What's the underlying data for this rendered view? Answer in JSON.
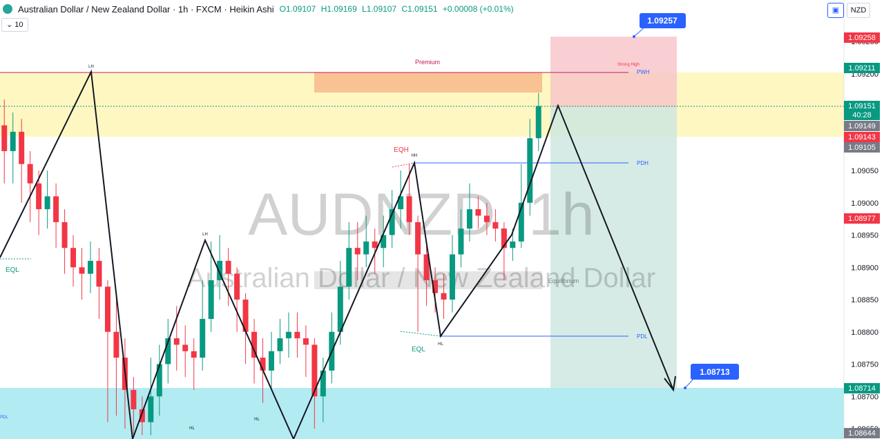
{
  "header": {
    "symbol_title": "Australian Dollar / New Zealand Dollar · 1h · FXCM · Heikin Ashi",
    "open": "O1.09107",
    "high": "H1.09169",
    "low": "L1.09107",
    "close": "C1.09151",
    "change": "+0.00008 (+0.01%)",
    "interval_value": "10",
    "currency_button": "NZD"
  },
  "watermark": {
    "symbol": "AUDNZD, 1h",
    "name": "Australian Dollar / New Zealand Dollar"
  },
  "colors": {
    "up": "#089981",
    "down": "#f23645",
    "premium_zone": "#fff7c2",
    "discount_zone": "#b2ebf2",
    "stop_zone": "#f8c3c8",
    "target_zone": "#cfe8e0",
    "orange_block": "#f7b98a",
    "callout": "#2962ff"
  },
  "chart_data": {
    "type": "candlestick",
    "title": "",
    "y_axis": {
      "ylim": [
        1.0864,
        1.0926
      ],
      "ticks": [
        "1.09250",
        "1.09200",
        "1.09050",
        "1.09000",
        "1.08950",
        "1.08900",
        "1.08850",
        "1.08800",
        "1.08750",
        "1.08700",
        "1.08650"
      ]
    },
    "price_labels": [
      {
        "value": "1.09258",
        "color": "#f23645"
      },
      {
        "value": "1.09211",
        "color": "#089981"
      },
      {
        "value": "1.09151",
        "color": "#089981"
      },
      {
        "value": "40:28",
        "color": "#089981"
      },
      {
        "value": "1.09149",
        "color": "#787b86"
      },
      {
        "value": "1.09143",
        "color": "#f23645"
      },
      {
        "value": "1.09105",
        "color": "#787b86"
      },
      {
        "value": "1.08977",
        "color": "#f23645"
      },
      {
        "value": "1.08714",
        "color": "#089981"
      },
      {
        "value": "1.08644",
        "color": "#787b86"
      }
    ],
    "annotations": {
      "premium": "Premium",
      "strong_high": "Strong High",
      "pwh": "PWH",
      "pdh": "PDH",
      "pdl": "PDL",
      "equilibrium": "Equilibrium",
      "eqh": "EQH",
      "eql_left": "EQL",
      "eql_mid": "EQL",
      "lh_1": "LH",
      "lh_2": "LH",
      "hh": "HH",
      "hl_1": "HL",
      "hl_2": "HL",
      "hl_3": "HL",
      "pdl_left": "PDL",
      "target_callout": "1.09257",
      "stop_callout": "1.08713"
    },
    "candles": [
      {
        "o": 1.0912,
        "c": 1.0908,
        "h": 1.0916,
        "l": 1.0903
      },
      {
        "o": 1.0908,
        "c": 1.0911,
        "h": 1.0914,
        "l": 1.0903
      },
      {
        "o": 1.0911,
        "c": 1.0906,
        "h": 1.0913,
        "l": 1.09
      },
      {
        "o": 1.0906,
        "c": 1.0903,
        "h": 1.0908,
        "l": 1.0897
      },
      {
        "o": 1.0903,
        "c": 1.0899,
        "h": 1.0905,
        "l": 1.0895
      },
      {
        "o": 1.0899,
        "c": 1.0901,
        "h": 1.0905,
        "l": 1.0896
      },
      {
        "o": 1.0901,
        "c": 1.0897,
        "h": 1.0903,
        "l": 1.0893
      },
      {
        "o": 1.0897,
        "c": 1.0893,
        "h": 1.0899,
        "l": 1.0889
      },
      {
        "o": 1.0893,
        "c": 1.089,
        "h": 1.0895,
        "l": 1.0887
      },
      {
        "o": 1.089,
        "c": 1.0889,
        "h": 1.0893,
        "l": 1.0885
      },
      {
        "o": 1.0889,
        "c": 1.0891,
        "h": 1.0894,
        "l": 1.0886
      },
      {
        "o": 1.0891,
        "c": 1.0887,
        "h": 1.0893,
        "l": 1.0882
      },
      {
        "o": 1.0887,
        "c": 1.088,
        "h": 1.0888,
        "l": 1.0866
      },
      {
        "o": 1.088,
        "c": 1.0876,
        "h": 1.0886,
        "l": 1.0867
      },
      {
        "o": 1.0876,
        "c": 1.0871,
        "h": 1.0879,
        "l": 1.0865
      },
      {
        "o": 1.0871,
        "c": 1.0868,
        "h": 1.0873,
        "l": 1.0864
      },
      {
        "o": 1.0868,
        "c": 1.0866,
        "h": 1.087,
        "l": 1.0864
      },
      {
        "o": 1.0866,
        "c": 1.087,
        "h": 1.0876,
        "l": 1.0864
      },
      {
        "o": 1.087,
        "c": 1.0875,
        "h": 1.0878,
        "l": 1.0867
      },
      {
        "o": 1.0875,
        "c": 1.0879,
        "h": 1.0882,
        "l": 1.0872
      },
      {
        "o": 1.0879,
        "c": 1.0878,
        "h": 1.0884,
        "l": 1.0874
      },
      {
        "o": 1.0878,
        "c": 1.0877,
        "h": 1.0881,
        "l": 1.0873
      },
      {
        "o": 1.0877,
        "c": 1.0876,
        "h": 1.0879,
        "l": 1.0871
      },
      {
        "o": 1.0876,
        "c": 1.0882,
        "h": 1.0888,
        "l": 1.0874
      },
      {
        "o": 1.0882,
        "c": 1.0888,
        "h": 1.0894,
        "l": 1.088
      },
      {
        "o": 1.0888,
        "c": 1.0891,
        "h": 1.0895,
        "l": 1.0885
      },
      {
        "o": 1.0891,
        "c": 1.0889,
        "h": 1.0893,
        "l": 1.0884
      },
      {
        "o": 1.0889,
        "c": 1.0885,
        "h": 1.089,
        "l": 1.088
      },
      {
        "o": 1.0885,
        "c": 1.088,
        "h": 1.0886,
        "l": 1.0875
      },
      {
        "o": 1.088,
        "c": 1.0876,
        "h": 1.0882,
        "l": 1.0872
      },
      {
        "o": 1.0876,
        "c": 1.0874,
        "h": 1.0879,
        "l": 1.0869
      },
      {
        "o": 1.0874,
        "c": 1.0877,
        "h": 1.088,
        "l": 1.0871
      },
      {
        "o": 1.0877,
        "c": 1.0879,
        "h": 1.0882,
        "l": 1.0875
      },
      {
        "o": 1.0879,
        "c": 1.088,
        "h": 1.0883,
        "l": 1.0876
      },
      {
        "o": 1.088,
        "c": 1.0879,
        "h": 1.0883,
        "l": 1.0876
      },
      {
        "o": 1.0879,
        "c": 1.0878,
        "h": 1.0881,
        "l": 1.0873
      },
      {
        "o": 1.0878,
        "c": 1.087,
        "h": 1.0879,
        "l": 1.0865
      },
      {
        "o": 1.087,
        "c": 1.0874,
        "h": 1.0876,
        "l": 1.0866
      },
      {
        "o": 1.0874,
        "c": 1.088,
        "h": 1.0883,
        "l": 1.0872
      },
      {
        "o": 1.088,
        "c": 1.0887,
        "h": 1.0891,
        "l": 1.0878
      },
      {
        "o": 1.0887,
        "c": 1.0893,
        "h": 1.0897,
        "l": 1.0885
      },
      {
        "o": 1.0893,
        "c": 1.0892,
        "h": 1.0897,
        "l": 1.0888
      },
      {
        "o": 1.0892,
        "c": 1.0894,
        "h": 1.0898,
        "l": 1.089
      },
      {
        "o": 1.0894,
        "c": 1.0893,
        "h": 1.0896,
        "l": 1.0889
      },
      {
        "o": 1.0893,
        "c": 1.0895,
        "h": 1.0898,
        "l": 1.089
      },
      {
        "o": 1.0895,
        "c": 1.0899,
        "h": 1.0902,
        "l": 1.0893
      },
      {
        "o": 1.0899,
        "c": 1.0901,
        "h": 1.0905,
        "l": 1.0896
      },
      {
        "o": 1.0901,
        "c": 1.0897,
        "h": 1.0906,
        "l": 1.0895
      },
      {
        "o": 1.0897,
        "c": 1.0892,
        "h": 1.0898,
        "l": 1.088
      },
      {
        "o": 1.0892,
        "c": 1.0888,
        "h": 1.0894,
        "l": 1.0884
      },
      {
        "o": 1.0888,
        "c": 1.0886,
        "h": 1.089,
        "l": 1.0883
      },
      {
        "o": 1.0886,
        "c": 1.0885,
        "h": 1.0889,
        "l": 1.0882
      },
      {
        "o": 1.0885,
        "c": 1.0892,
        "h": 1.0895,
        "l": 1.0883
      },
      {
        "o": 1.0892,
        "c": 1.0896,
        "h": 1.0899,
        "l": 1.089
      },
      {
        "o": 1.0896,
        "c": 1.0899,
        "h": 1.0903,
        "l": 1.0894
      },
      {
        "o": 1.0899,
        "c": 1.0898,
        "h": 1.0901,
        "l": 1.0896
      },
      {
        "o": 1.0898,
        "c": 1.0897,
        "h": 1.09,
        "l": 1.0895
      },
      {
        "o": 1.0897,
        "c": 1.0896,
        "h": 1.0899,
        "l": 1.0894
      },
      {
        "o": 1.0896,
        "c": 1.0893,
        "h": 1.0897,
        "l": 1.0888
      },
      {
        "o": 1.0893,
        "c": 1.0894,
        "h": 1.0896,
        "l": 1.0891
      },
      {
        "o": 1.0894,
        "c": 1.09,
        "h": 1.0906,
        "l": 1.0893
      },
      {
        "o": 1.09,
        "c": 1.091,
        "h": 1.0913,
        "l": 1.0898
      },
      {
        "o": 1.091,
        "c": 1.0915,
        "h": 1.0917,
        "l": 1.0908
      }
    ]
  }
}
